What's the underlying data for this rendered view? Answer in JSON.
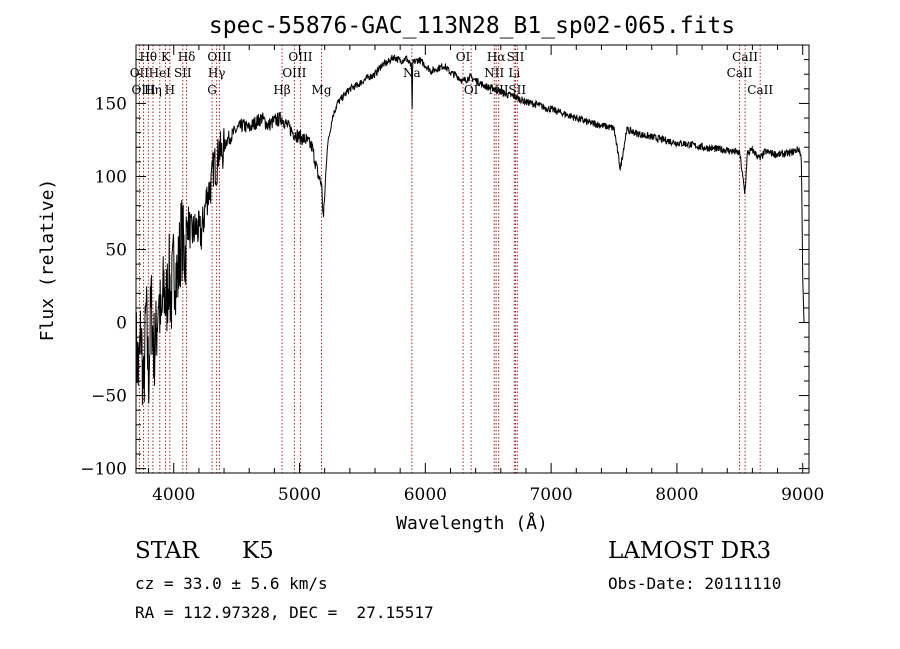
{
  "chart_data": {
    "type": "line",
    "title": "spec-55876-GAC_113N28_B1_sp02-065.fits",
    "xlabel": "Wavelength (Å)",
    "ylabel": "Flux (relative)",
    "xlim": [
      3700,
      9050
    ],
    "ylim": [
      -103,
      190
    ],
    "x_ticks": [
      4000,
      5000,
      6000,
      7000,
      8000,
      9000
    ],
    "x_tick_labels": [
      "4000",
      "5000",
      "6000",
      "7000",
      "8000",
      "9000"
    ],
    "y_ticks": [
      -100,
      -50,
      0,
      50,
      100,
      150
    ],
    "y_tick_labels": [
      "−100",
      "−50",
      "0",
      "50",
      "100",
      "150"
    ],
    "grid": false,
    "series": [
      {
        "name": "flux",
        "x": [
          3700,
          3720,
          3740,
          3760,
          3780,
          3800,
          3820,
          3840,
          3860,
          3880,
          3900,
          3920,
          3940,
          3960,
          3980,
          4000,
          4030,
          4060,
          4090,
          4110,
          4140,
          4180,
          4220,
          4260,
          4300,
          4320,
          4340,
          4360,
          4380,
          4420,
          4460,
          4500,
          4550,
          4600,
          4650,
          4700,
          4750,
          4800,
          4860,
          4900,
          4950,
          5000,
          5050,
          5100,
          5150,
          5175,
          5190,
          5220,
          5260,
          5300,
          5350,
          5400,
          5450,
          5500,
          5550,
          5600,
          5650,
          5700,
          5750,
          5800,
          5850,
          5890,
          5895,
          5900,
          5950,
          6000,
          6050,
          6100,
          6150,
          6200,
          6250,
          6300,
          6350,
          6400,
          6450,
          6500,
          6560,
          6600,
          6650,
          6700,
          6750,
          6800,
          6850,
          6900,
          6950,
          7000,
          7100,
          7200,
          7300,
          7400,
          7500,
          7550,
          7600,
          7700,
          7800,
          7900,
          8000,
          8100,
          8200,
          8300,
          8400,
          8450,
          8500,
          8540,
          8560,
          8600,
          8662,
          8700,
          8800,
          8900,
          8950,
          8970,
          8990,
          9000,
          9010
        ],
        "y": [
          -15,
          -35,
          -5,
          -50,
          10,
          -40,
          15,
          -20,
          -10,
          20,
          -5,
          25,
          10,
          35,
          15,
          40,
          30,
          60,
          45,
          70,
          60,
          65,
          60,
          85,
          95,
          110,
          105,
          120,
          115,
          125,
          128,
          132,
          135,
          133,
          137,
          140,
          135,
          138,
          140,
          135,
          130,
          127,
          125,
          120,
          100,
          95,
          70,
          120,
          140,
          150,
          155,
          160,
          162,
          165,
          168,
          170,
          176,
          178,
          182,
          179,
          181,
          175,
          140,
          178,
          180,
          176,
          172,
          174,
          176,
          171,
          169,
          165,
          168,
          166,
          163,
          161,
          160,
          158,
          156,
          155,
          153,
          151,
          150,
          149,
          147,
          146,
          143,
          140,
          137,
          135,
          133,
          105,
          132,
          129,
          127,
          125,
          123,
          122,
          120,
          119,
          118,
          117,
          116,
          88,
          116,
          118,
          112,
          117,
          115,
          116,
          118,
          119,
          112,
          30,
          0
        ]
      }
    ],
    "spectral_lines": [
      {
        "label": "Hθ",
        "x": 3798,
        "row": 1
      },
      {
        "label": "OII",
        "x": 3727,
        "row": 2
      },
      {
        "label": "OIII",
        "x": 3760,
        "row": 3
      },
      {
        "label": "Hη",
        "x": 3835,
        "row": 3
      },
      {
        "label": "HeI",
        "x": 3889,
        "row": 2
      },
      {
        "label": "K",
        "x": 3934,
        "row": 1
      },
      {
        "label": "H",
        "x": 3969,
        "row": 3
      },
      {
        "label": "SII",
        "x": 4072,
        "row": 2
      },
      {
        "label": "Hδ",
        "x": 4102,
        "row": 1
      },
      {
        "label": "OIII",
        "x": 4363,
        "row": 1
      },
      {
        "label": "Hγ",
        "x": 4341,
        "row": 2
      },
      {
        "label": "G",
        "x": 4305,
        "row": 3
      },
      {
        "label": "Hβ",
        "x": 4861,
        "row": 3
      },
      {
        "label": "OIII",
        "x": 4959,
        "row": 2
      },
      {
        "label": "OIII",
        "x": 5007,
        "row": 1
      },
      {
        "label": "Mg",
        "x": 5175,
        "row": 3
      },
      {
        "label": "Na",
        "x": 5893,
        "row": 2
      },
      {
        "label": "OI",
        "x": 6300,
        "row": 1
      },
      {
        "label": "OI",
        "x": 6364,
        "row": 3
      },
      {
        "label": "NII",
        "x": 6548,
        "row": 2
      },
      {
        "label": "Hα",
        "x": 6563,
        "row": 1
      },
      {
        "label": "NII",
        "x": 6583,
        "row": 3
      },
      {
        "label": "SII",
        "x": 6717,
        "row": 1
      },
      {
        "label": "Li",
        "x": 6707,
        "row": 2
      },
      {
        "label": "SII",
        "x": 6731,
        "row": 3
      },
      {
        "label": "CaII",
        "x": 8498,
        "row": 2
      },
      {
        "label": "CaII",
        "x": 8542,
        "row": 1
      },
      {
        "label": "CaII",
        "x": 8662,
        "row": 3
      }
    ]
  },
  "footer": {
    "class_label": "STAR",
    "subclass": "K5",
    "survey": "LAMOST DR3",
    "redshift": "cz = 33.0 ± 5.6 km/s",
    "obs_date": "Obs-Date: 20111110",
    "coords": "RA = 112.97328, DEC =  27.15517"
  },
  "colors": {
    "line": "#000000",
    "marker": "#b22222"
  }
}
